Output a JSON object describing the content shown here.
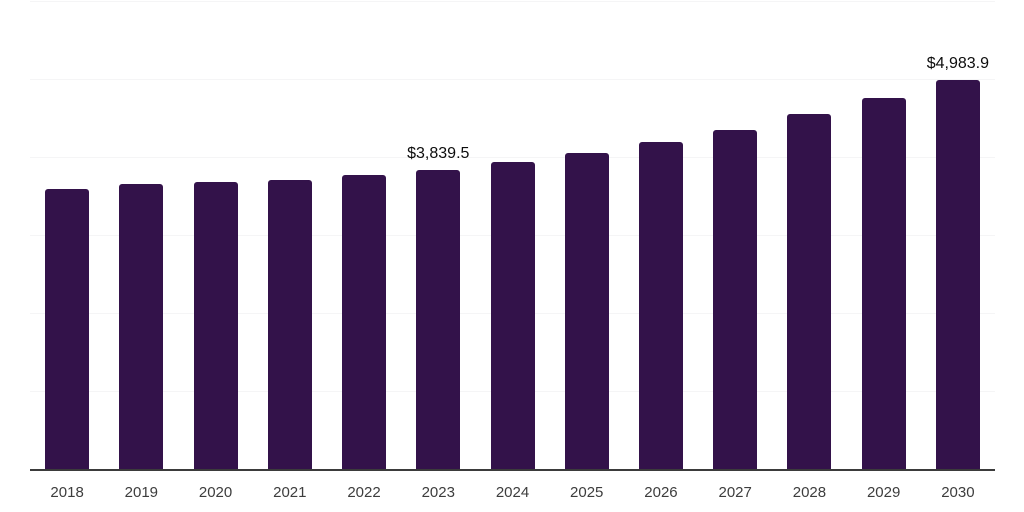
{
  "chart_data": {
    "type": "bar",
    "title": "",
    "xlabel": "",
    "ylabel": "",
    "categories": [
      "2018",
      "2019",
      "2020",
      "2021",
      "2022",
      "2023",
      "2024",
      "2025",
      "2026",
      "2027",
      "2028",
      "2029",
      "2030"
    ],
    "values": [
      3600.0,
      3655.0,
      3690.0,
      3715.0,
      3775.0,
      3839.5,
      3940.0,
      4055.0,
      4195.0,
      4355.0,
      4560.0,
      4755.0,
      4983.9
    ],
    "value_labels": {
      "2023": "$3,839.5",
      "2030": "$4,983.9"
    },
    "ylim": [
      0,
      6000
    ],
    "gridline_values": [
      1000,
      2000,
      3000,
      4000,
      5000,
      6000
    ],
    "grid": true,
    "legend": false,
    "colors": {
      "bar": "#33124a",
      "axis": "#3b3b3b",
      "gridline": "#f5f5f6",
      "value_label": "#0d0d0d",
      "tick": "#3d3d3d",
      "background": "#ffffff"
    }
  }
}
